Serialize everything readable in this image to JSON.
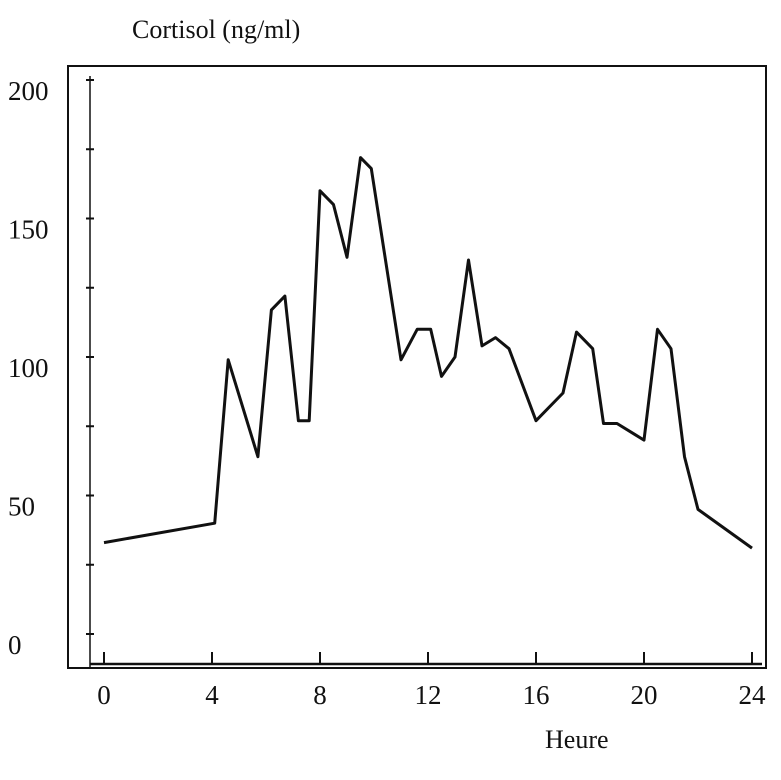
{
  "chart_data": {
    "type": "line",
    "ylabel": "Cortisol (ng/ml)",
    "xlabel": "Heure",
    "xlim": [
      0,
      24
    ],
    "ylim": [
      0,
      200
    ],
    "grid": false,
    "legend": "none",
    "x_ticks": [
      0,
      4,
      8,
      12,
      16,
      20,
      24
    ],
    "y_ticks": [
      0,
      50,
      100,
      150,
      200
    ],
    "line_color": "#111111",
    "series": [
      {
        "x": [
          0,
          4.1,
          4.6,
          5.7,
          6.2,
          6.7,
          7.2,
          7.6,
          8.0,
          8.5,
          9.0,
          9.5,
          9.9,
          11.0,
          11.6,
          12.1,
          12.5,
          13.0,
          13.5,
          14.0,
          14.5,
          15.0,
          16.0,
          17.0,
          17.5,
          18.1,
          18.5,
          19.0,
          20.0,
          20.5,
          21.0,
          21.5,
          22.0,
          24.0
        ],
        "y": [
          33,
          40,
          99,
          64,
          117,
          122,
          77,
          77,
          160,
          155,
          136,
          172,
          168,
          99,
          110,
          110,
          93,
          100,
          135,
          104,
          107,
          103,
          77,
          87,
          109,
          103,
          76,
          76,
          70,
          110,
          103,
          64,
          45,
          31
        ]
      }
    ]
  }
}
